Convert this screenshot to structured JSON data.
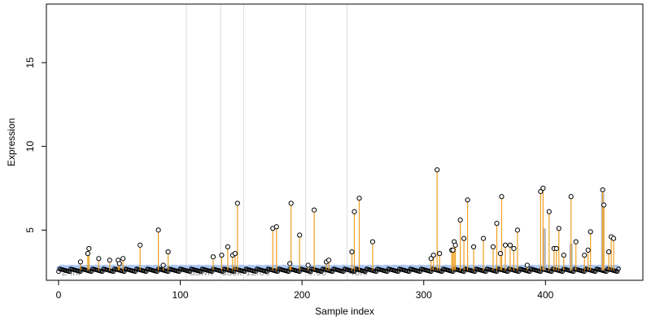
{
  "chart_data": {
    "type": "scatter",
    "xlabel": "Sample index",
    "ylabel": "Expression",
    "xlim": [
      -10,
      480
    ],
    "ylim": [
      2.0,
      18.5
    ],
    "x_ticks": [
      0,
      100,
      200,
      300,
      400
    ],
    "y_ticks": [
      5,
      10,
      15
    ],
    "baseline_value": 2.6,
    "reference_lines": [
      {
        "x": 105
      },
      {
        "x": 133
      },
      {
        "x": 152
      },
      {
        "x": 203
      },
      {
        "x": 237
      }
    ],
    "annotations": [
      {
        "text": "24hr",
        "x": 2
      },
      {
        "text": "dawn",
        "x": 107
      },
      {
        "text": "dusk",
        "x": 133
      },
      {
        "text": "12:00",
        "x": 153
      },
      {
        "text": "0:00",
        "x": 204
      },
      {
        "text": "48hr",
        "x": 238
      }
    ],
    "series": [
      {
        "values": [
          {
            "x": 18,
            "y": 3.1
          },
          {
            "x": 24,
            "y": 3.6
          },
          {
            "x": 25,
            "y": 3.9
          },
          {
            "x": 33,
            "y": 3.3
          },
          {
            "x": 42,
            "y": 3.2
          },
          {
            "x": 49,
            "y": 3.2
          },
          {
            "x": 50,
            "y": 3.0
          },
          {
            "x": 53,
            "y": 3.3
          },
          {
            "x": 67,
            "y": 4.1
          },
          {
            "x": 82,
            "y": 5.0
          },
          {
            "x": 86,
            "y": 2.9
          },
          {
            "x": 90,
            "y": 3.7
          },
          {
            "x": 127,
            "y": 3.4
          },
          {
            "x": 134,
            "y": 3.5
          },
          {
            "x": 139,
            "y": 4.0
          },
          {
            "x": 143,
            "y": 3.5
          },
          {
            "x": 145,
            "y": 3.6
          },
          {
            "x": 147,
            "y": 6.6
          },
          {
            "x": 176,
            "y": 5.1
          },
          {
            "x": 179,
            "y": 5.2
          },
          {
            "x": 190,
            "y": 3.0
          },
          {
            "x": 191,
            "y": 6.6
          },
          {
            "x": 198,
            "y": 4.7
          },
          {
            "x": 205,
            "y": 2.9
          },
          {
            "x": 210,
            "y": 6.2
          },
          {
            "x": 220,
            "y": 3.1
          },
          {
            "x": 222,
            "y": 3.2
          },
          {
            "x": 241,
            "y": 3.7
          },
          {
            "x": 243,
            "y": 6.1
          },
          {
            "x": 247,
            "y": 6.9
          },
          {
            "x": 258,
            "y": 4.3
          },
          {
            "x": 306,
            "y": 3.3
          },
          {
            "x": 308,
            "y": 3.5
          },
          {
            "x": 311,
            "y": 8.6
          },
          {
            "x": 313,
            "y": 3.6
          },
          {
            "x": 323,
            "y": 3.8
          },
          {
            "x": 324,
            "y": 3.8
          },
          {
            "x": 325,
            "y": 4.3
          },
          {
            "x": 326,
            "y": 4.1
          },
          {
            "x": 330,
            "y": 5.6
          },
          {
            "x": 333,
            "y": 4.5
          },
          {
            "x": 336,
            "y": 6.8
          },
          {
            "x": 341,
            "y": 4.0
          },
          {
            "x": 349,
            "y": 4.5
          },
          {
            "x": 357,
            "y": 4.0
          },
          {
            "x": 360,
            "y": 5.4
          },
          {
            "x": 363,
            "y": 3.6
          },
          {
            "x": 364,
            "y": 7.0
          },
          {
            "x": 367,
            "y": 4.1
          },
          {
            "x": 371,
            "y": 4.1
          },
          {
            "x": 374,
            "y": 3.9
          },
          {
            "x": 377,
            "y": 5.0
          },
          {
            "x": 385,
            "y": 2.9
          },
          {
            "x": 396,
            "y": 7.3
          },
          {
            "x": 398,
            "y": 7.5
          },
          {
            "x": 403,
            "y": 6.1
          },
          {
            "x": 407,
            "y": 3.9
          },
          {
            "x": 409,
            "y": 3.9
          },
          {
            "x": 411,
            "y": 5.1
          },
          {
            "x": 415,
            "y": 3.5
          },
          {
            "x": 421,
            "y": 7.0
          },
          {
            "x": 425,
            "y": 4.3
          },
          {
            "x": 432,
            "y": 3.5
          },
          {
            "x": 435,
            "y": 3.8
          },
          {
            "x": 437,
            "y": 4.9
          },
          {
            "x": 447,
            "y": 7.4
          },
          {
            "x": 448,
            "y": 6.5
          },
          {
            "x": 452,
            "y": 3.7
          },
          {
            "x": 454,
            "y": 4.6
          },
          {
            "x": 456,
            "y": 4.5
          }
        ]
      }
    ],
    "colors": {
      "spike": "#f0a020",
      "gray_spike": "#a8a8a8",
      "baseline_band": "#a8c4f0",
      "point_stroke": "#000000",
      "reference_line": "#dddddd",
      "annotation_text": "#9a9a9a"
    }
  }
}
